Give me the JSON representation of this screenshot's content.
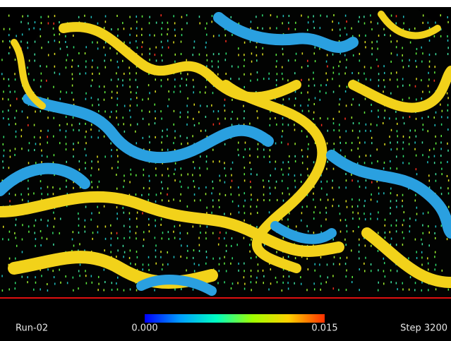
{
  "overlay": {
    "run_label": "Run-02",
    "step_label": "Step 3200"
  },
  "colorbar": {
    "min_label": "0.000",
    "max_label": "0.015"
  }
}
